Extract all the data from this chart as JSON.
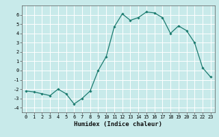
{
  "x": [
    0,
    1,
    2,
    3,
    4,
    5,
    6,
    7,
    8,
    9,
    10,
    11,
    12,
    13,
    14,
    15,
    16,
    17,
    18,
    19,
    20,
    21,
    22,
    23
  ],
  "y": [
    -2.2,
    -2.3,
    -2.5,
    -2.7,
    -2.0,
    -2.5,
    -3.6,
    -3.0,
    -2.2,
    0.0,
    1.5,
    4.7,
    6.1,
    5.4,
    5.7,
    6.3,
    6.2,
    5.7,
    4.0,
    4.8,
    4.3,
    3.0,
    0.3,
    -0.7
  ],
  "line_color": "#1a7a6e",
  "marker": "D",
  "marker_size": 1.8,
  "bg_color": "#c8eaea",
  "grid_color": "#ffffff",
  "xlabel": "Humidex (Indice chaleur)",
  "xlim": [
    -0.5,
    23.5
  ],
  "ylim": [
    -4.5,
    7.0
  ],
  "yticks": [
    -4,
    -3,
    -2,
    -1,
    0,
    1,
    2,
    3,
    4,
    5,
    6
  ],
  "xticks": [
    0,
    1,
    2,
    3,
    4,
    5,
    6,
    7,
    8,
    9,
    10,
    11,
    12,
    13,
    14,
    15,
    16,
    17,
    18,
    19,
    20,
    21,
    22,
    23
  ],
  "tick_fontsize": 5.0,
  "xlabel_fontsize": 6.5,
  "line_width": 0.9
}
